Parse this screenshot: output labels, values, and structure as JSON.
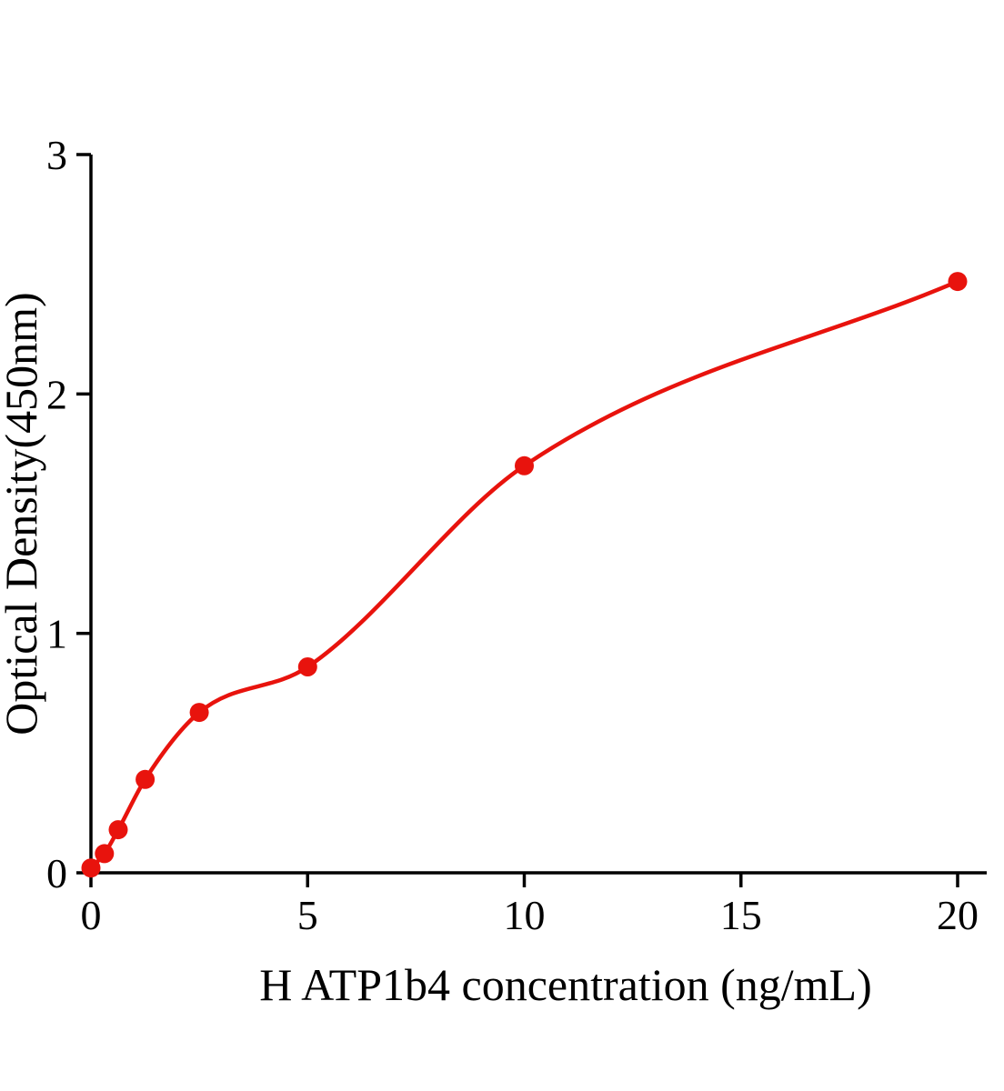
{
  "chart_data": {
    "type": "scatter",
    "subtype": "standard-curve-with-fit",
    "title": "",
    "xlabel": "H ATP1b4 concentration (ng/mL)",
    "ylabel": "Optical Density(450nm)",
    "xlim": [
      0,
      20.7
    ],
    "ylim": [
      0,
      3
    ],
    "xticks": [
      0,
      5,
      10,
      15,
      20
    ],
    "yticks": [
      0,
      1,
      2,
      3
    ],
    "grid": false,
    "legend": "none",
    "point_color": "#e8130d",
    "curve_color": "#e8130d",
    "axis_color": "#000000",
    "background": "#ffffff",
    "x": [
      0,
      0.31,
      0.63,
      1.25,
      2.5,
      5,
      10,
      20
    ],
    "y": [
      0.02,
      0.08,
      0.18,
      0.39,
      0.67,
      0.86,
      1.7,
      2.47
    ]
  }
}
